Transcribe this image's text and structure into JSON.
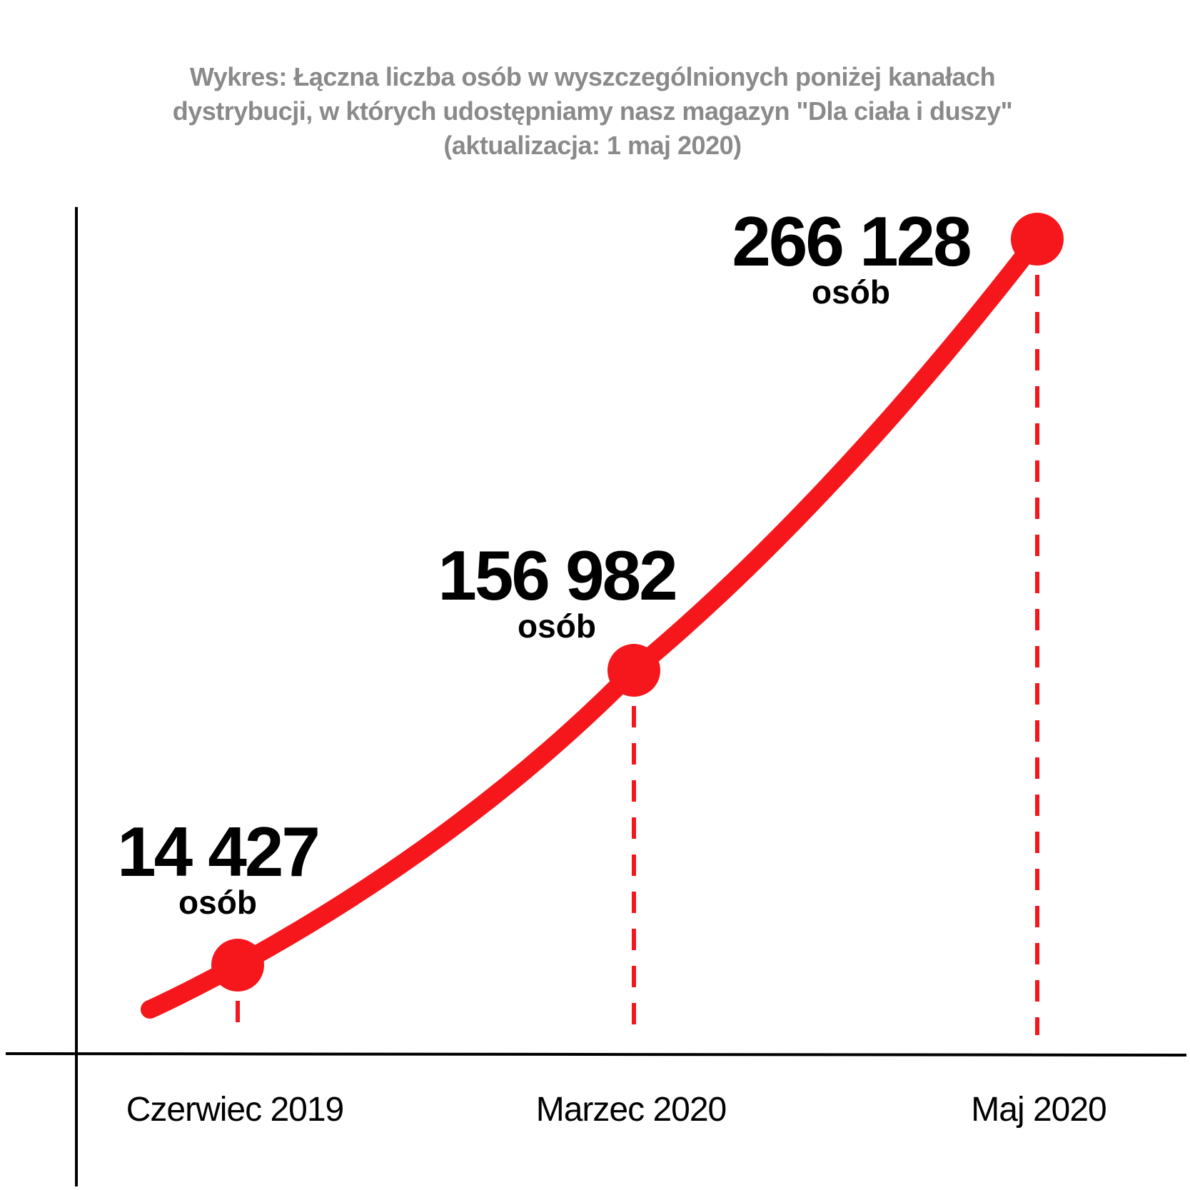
{
  "chart_data": {
    "type": "line",
    "title": "Wykres: Łączna liczba osób w wyszczególnionych poniżej kanałach dystrybucji, w których udostępniamy nasz magazyn \"Dla ciała i duszy\" (aktualizacja: 1 maj 2020)",
    "xlabel": "",
    "ylabel": "",
    "categories": [
      "Czerwiec 2019",
      "Marzec 2020",
      "Maj 2020"
    ],
    "values": [
      14427,
      156982,
      266128
    ],
    "value_labels": [
      "14 427",
      "156 982",
      "266 128"
    ],
    "unit_label": "osób",
    "grid": false,
    "legend": "none"
  },
  "colors": {
    "line": "#f5171c",
    "axis": "#000000",
    "title": "#8a8a8a",
    "text": "#000000"
  }
}
